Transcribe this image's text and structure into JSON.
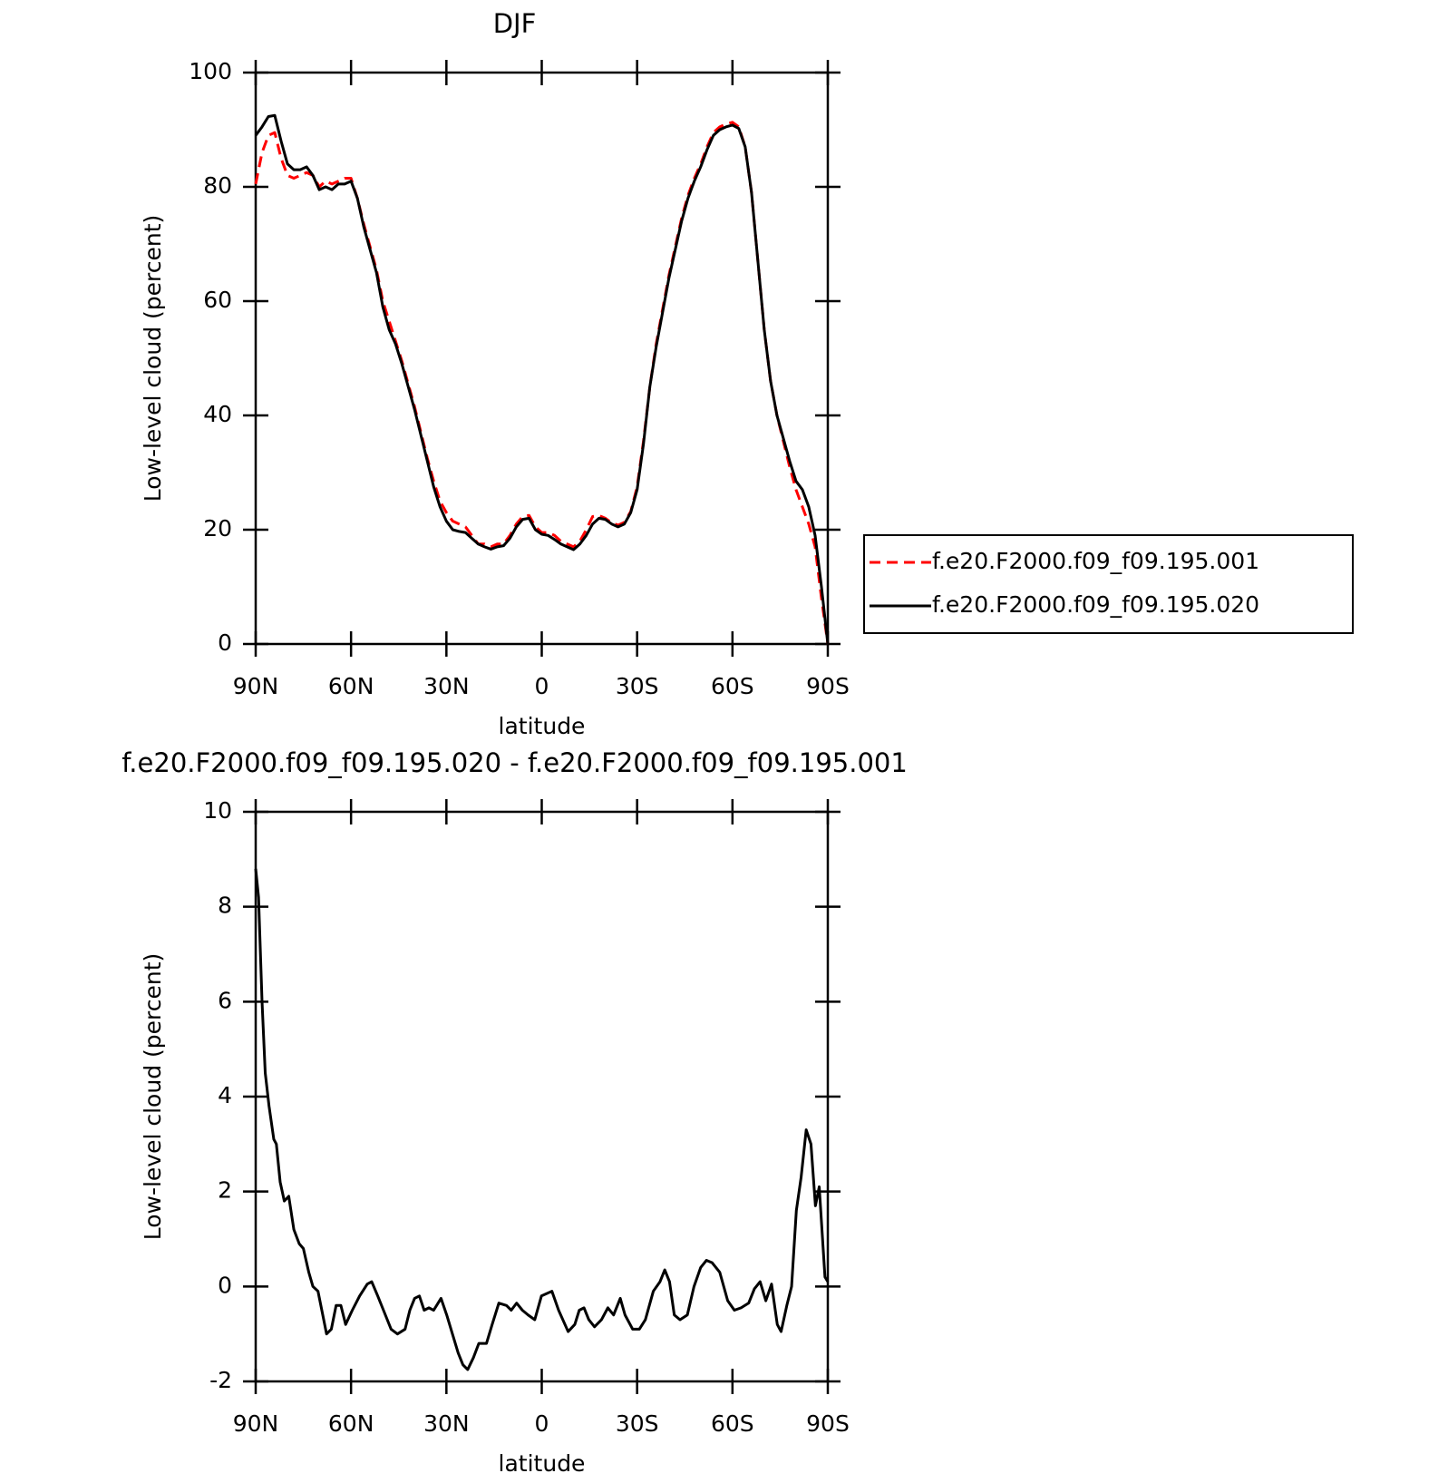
{
  "chart_data": [
    {
      "type": "line",
      "title": "DJF",
      "x_label": "latitude",
      "y_label": "Low-level cloud (percent)",
      "x": [
        90,
        88,
        86,
        84,
        82,
        80,
        78,
        76,
        74,
        72,
        70,
        68,
        66,
        64,
        62,
        60,
        58,
        56,
        54,
        52,
        50,
        48,
        46,
        44,
        42,
        40,
        38,
        36,
        34,
        32,
        30,
        28,
        26,
        24,
        22,
        20,
        18,
        16,
        14,
        12,
        10,
        8,
        6,
        4,
        2,
        0,
        -2,
        -4,
        -6,
        -8,
        -10,
        -12,
        -14,
        -16,
        -18,
        -20,
        -22,
        -24,
        -26,
        -28,
        -30,
        -32,
        -34,
        -36,
        -38,
        -40,
        -42,
        -44,
        -46,
        -48,
        -50,
        -52,
        -54,
        -56,
        -58,
        -60,
        -62,
        -64,
        -66,
        -68,
        -70,
        -72,
        -74,
        -76,
        -78,
        -80,
        -82,
        -84,
        -86,
        -88,
        -90
      ],
      "series": [
        {
          "name": "f.e20.F2000.f09_f09.195.001",
          "color": "#ff0000",
          "dashed": true,
          "values": [
            80.5,
            86,
            89,
            89.5,
            85,
            82,
            81.5,
            82,
            82.5,
            82,
            80,
            81,
            80.5,
            81,
            81.5,
            81.5,
            78,
            73.5,
            69.5,
            65.5,
            60,
            56.5,
            53,
            49.5,
            45.5,
            41.5,
            37,
            32.5,
            28.5,
            25,
            23,
            21.5,
            21,
            20.5,
            19,
            17.5,
            17.5,
            17,
            17.5,
            17.5,
            19,
            21,
            22.3,
            22.5,
            20.5,
            19.5,
            19.5,
            19,
            18,
            17.5,
            17,
            18,
            20,
            22.3,
            22.5,
            22,
            21.2,
            20.8,
            21.3,
            23.2,
            27.5,
            35.5,
            45,
            52.5,
            58.5,
            64.5,
            69.5,
            74.5,
            78.5,
            81.5,
            84,
            87,
            89.5,
            90.5,
            91,
            91.3,
            90.5,
            87,
            79,
            67,
            55,
            46,
            40,
            35.5,
            31,
            27,
            24,
            21,
            17,
            8,
            0
          ]
        },
        {
          "name": "f.e20.F2000.f09_f09.195.020",
          "color": "#000000",
          "dashed": false,
          "values": [
            89,
            90.5,
            92.3,
            92.5,
            88,
            84,
            83,
            83,
            83.5,
            82,
            79.5,
            80,
            79.5,
            80.5,
            80.5,
            81,
            78,
            73,
            69,
            65,
            59,
            55,
            52.5,
            49,
            45,
            41,
            36.5,
            32,
            27.5,
            24,
            21.5,
            20,
            19.7,
            19.5,
            18.5,
            17.5,
            17,
            16.6,
            17,
            17.2,
            18.5,
            20.5,
            21.8,
            22,
            20,
            19.2,
            19,
            18.3,
            17.5,
            17,
            16.5,
            17.5,
            19,
            21,
            22,
            21.8,
            21,
            20.5,
            21,
            23,
            27,
            35,
            45,
            52,
            58,
            64,
            69,
            74,
            78,
            81,
            83.5,
            86.5,
            89,
            90,
            90.5,
            90.8,
            90.2,
            87,
            79,
            67,
            55,
            46,
            40,
            36,
            32,
            28.5,
            27,
            24,
            19,
            10,
            0
          ]
        }
      ],
      "xlim": [
        90,
        -90
      ],
      "xticks": [
        {
          "value": 90,
          "label": "90N"
        },
        {
          "value": 60,
          "label": "60N"
        },
        {
          "value": 30,
          "label": "30N"
        },
        0,
        {
          "value": -30,
          "label": "30S"
        },
        {
          "value": -60,
          "label": "60S"
        },
        {
          "value": -90,
          "label": "90S"
        }
      ],
      "ylim": [
        0,
        100
      ],
      "yticks": [
        0,
        20,
        40,
        60,
        80,
        100
      ],
      "grid": false,
      "legend": "right"
    },
    {
      "type": "line",
      "title": "f.e20.F2000.f09_f09.195.020 - f.e20.F2000.f09_f09.195.001",
      "x_label": "latitude",
      "y_label": "Low-level cloud (percent)",
      "x": [
        90,
        89.1,
        88,
        87,
        85.8,
        84.3,
        83.5,
        82.3,
        81,
        79.6,
        78,
        76.3,
        75,
        73.3,
        72,
        70.4,
        68.9,
        67.7,
        66.2,
        64.7,
        63.2,
        61.7,
        59.6,
        57.3,
        54.9,
        53.5,
        51.6,
        49.8,
        47.4,
        45.4,
        43,
        41.5,
        40,
        38.5,
        37,
        35.5,
        34,
        31.7,
        29.9,
        28.1,
        26.3,
        24.8,
        23.3,
        21.5,
        19.8,
        17.4,
        15.6,
        13.5,
        11.1,
        9.6,
        7.9,
        6.1,
        4.3,
        2.2,
        0.1,
        -3.2,
        -5.3,
        -8.3,
        -10.4,
        -11.8,
        -13.3,
        -14.8,
        -16.6,
        -18.8,
        -20.8,
        -22.6,
        -24.7,
        -26.2,
        -28.6,
        -30.7,
        -32.6,
        -35.1,
        -37.2,
        -38.7,
        -40.2,
        -41.7,
        -43.5,
        -45.8,
        -47.9,
        -50,
        -51.8,
        -53.6,
        -56,
        -58.5,
        -60.6,
        -62.7,
        -65.1,
        -66.9,
        -68.7,
        -70.5,
        -72.3,
        -74.1,
        -75.3,
        -77.1,
        -78.6,
        -80.1,
        -81.6,
        -83.2,
        -84.7,
        -86.1,
        -87.3,
        -89.1,
        -90
      ],
      "values": [
        8.8,
        8.2,
        6,
        4.5,
        3.8,
        3.1,
        3,
        2.2,
        1.8,
        1.9,
        1.2,
        0.9,
        0.8,
        0.3,
        0,
        -0.1,
        -0.6,
        -1,
        -0.9,
        -0.4,
        -0.4,
        -0.8,
        -0.5,
        -0.2,
        0.05,
        0.1,
        -0.2,
        -0.5,
        -0.9,
        -1,
        -0.9,
        -0.5,
        -0.25,
        -0.2,
        -0.5,
        -0.45,
        -0.5,
        -0.25,
        -0.6,
        -1,
        -1.4,
        -1.65,
        -1.75,
        -1.5,
        -1.2,
        -1.2,
        -0.8,
        -0.35,
        -0.4,
        -0.5,
        -0.35,
        -0.5,
        -0.6,
        -0.7,
        -0.2,
        -0.1,
        -0.5,
        -0.95,
        -0.8,
        -0.5,
        -0.45,
        -0.7,
        -0.85,
        -0.7,
        -0.45,
        -0.6,
        -0.25,
        -0.6,
        -0.9,
        -0.9,
        -0.7,
        -0.1,
        0.1,
        0.35,
        0.1,
        -0.6,
        -0.7,
        -0.6,
        0,
        0.4,
        0.55,
        0.5,
        0.3,
        -0.3,
        -0.5,
        -0.45,
        -0.35,
        -0.05,
        0.1,
        -0.3,
        0.05,
        -0.8,
        -0.95,
        -0.4,
        0,
        1.6,
        2.3,
        3.3,
        3,
        1.7,
        2.1,
        0.2,
        0.1
      ],
      "color": "#000000",
      "xlim": [
        90,
        -90
      ],
      "xticks": [
        {
          "value": 90,
          "label": "90N"
        },
        {
          "value": 60,
          "label": "60N"
        },
        {
          "value": 30,
          "label": "30N"
        },
        0,
        {
          "value": -30,
          "label": "30S"
        },
        {
          "value": -60,
          "label": "60S"
        },
        {
          "value": -90,
          "label": "90S"
        }
      ],
      "ylim": [
        -2,
        10
      ],
      "yticks": [
        -2,
        0,
        2,
        4,
        6,
        8,
        10
      ],
      "grid": false
    }
  ]
}
